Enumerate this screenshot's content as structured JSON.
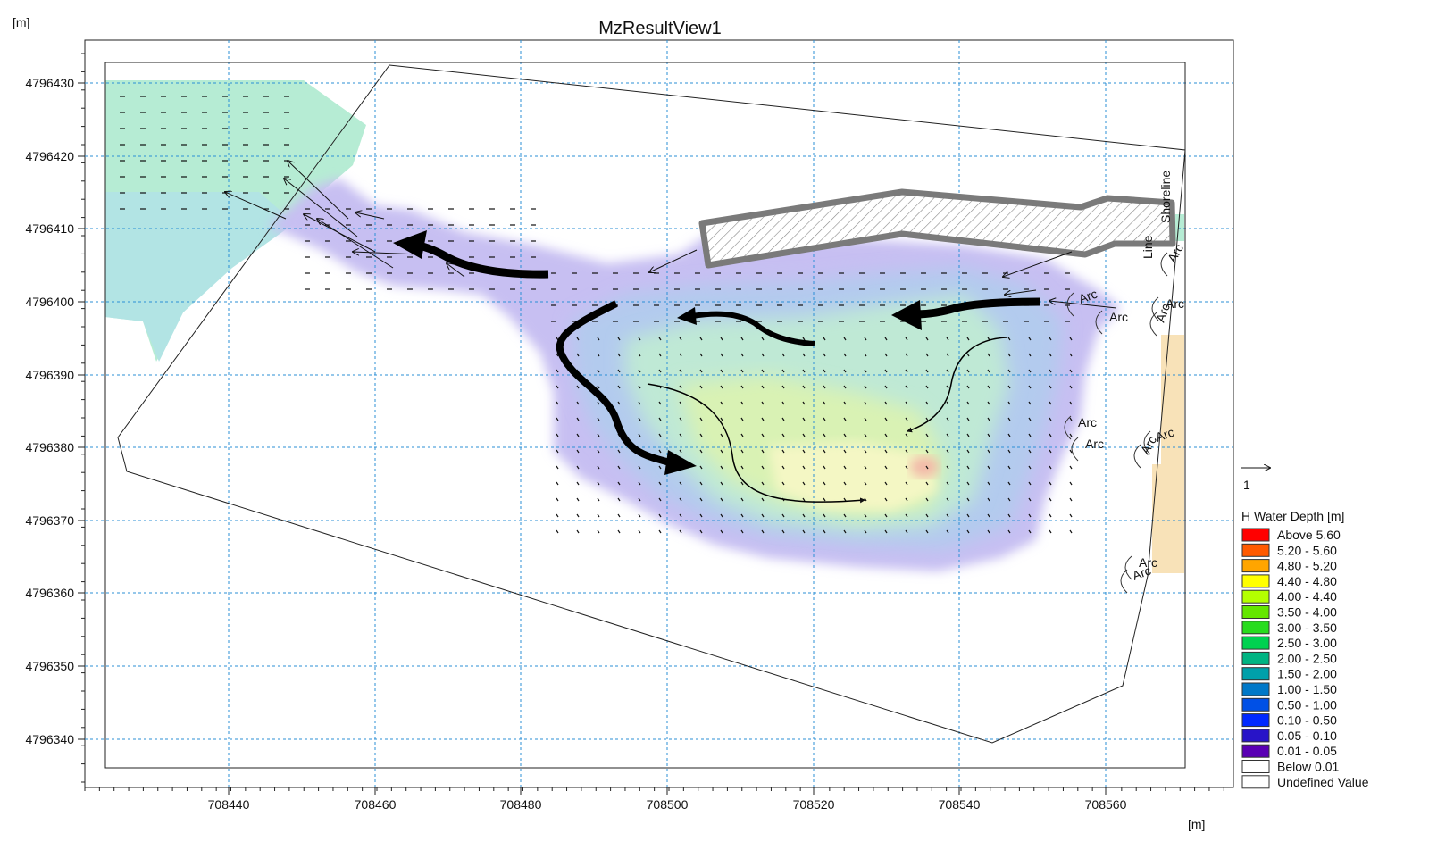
{
  "title": "MzResultView1",
  "y_unit": "[m]",
  "x_unit": "[m]",
  "y_ticks": [
    "4796430",
    "4796420",
    "4796410",
    "4796400",
    "4796390",
    "4796380",
    "4796370",
    "4796360",
    "4796350",
    "4796340"
  ],
  "x_ticks": [
    "708440",
    "708460",
    "708480",
    "708500",
    "708520",
    "708540",
    "708560"
  ],
  "arc_label": "Arc",
  "shoreline_labels": [
    "Line",
    "Shoreline"
  ],
  "legend": {
    "scale_value": "1",
    "title": "H Water Depth [m]",
    "items": [
      {
        "label": "Above 5.60",
        "color": "#ff0000"
      },
      {
        "label": "5.20 - 5.60",
        "color": "#ff5a00"
      },
      {
        "label": "4.80 - 5.20",
        "color": "#ffa500"
      },
      {
        "label": "4.40 - 4.80",
        "color": "#ffff00"
      },
      {
        "label": "4.00 - 4.40",
        "color": "#b4ff00"
      },
      {
        "label": "3.50 - 4.00",
        "color": "#64e600"
      },
      {
        "label": "3.00 - 3.50",
        "color": "#28dc1e"
      },
      {
        "label": "2.50 - 3.00",
        "color": "#00d250"
      },
      {
        "label": "2.00 - 2.50",
        "color": "#00b482"
      },
      {
        "label": "1.50 - 2.00",
        "color": "#00a0aa"
      },
      {
        "label": "1.00 - 1.50",
        "color": "#0078c8"
      },
      {
        "label": "0.50 - 1.00",
        "color": "#0050e6"
      },
      {
        "label": "0.10 - 0.50",
        "color": "#0028ff"
      },
      {
        "label": "0.05 - 0.10",
        "color": "#2814c8"
      },
      {
        "label": "0.01 - 0.05",
        "color": "#5a00b4"
      },
      {
        "label": "Below 0.01",
        "color": "#ffffff"
      },
      {
        "label": "Undefined Value",
        "color": "#ffffff"
      }
    ]
  }
}
